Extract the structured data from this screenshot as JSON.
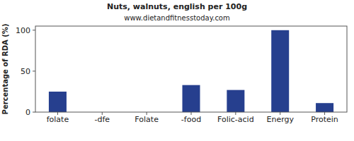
{
  "chart_data": {
    "type": "bar",
    "title": "Nuts, walnuts, english per 100g",
    "subtitle": "www.dietandfitnesstoday.com",
    "y_label": "Percentage of RDA (%)",
    "categories": [
      "folate",
      "-dfe",
      "Folate",
      "-food",
      "Folic-acid",
      "Energy",
      "Protein"
    ],
    "values": [
      25,
      0,
      0,
      33,
      27,
      100,
      11
    ],
    "color": "#263f8e",
    "ylim": [
      0,
      105
    ],
    "yticks": [
      0,
      50,
      100
    ],
    "grid": false
  }
}
